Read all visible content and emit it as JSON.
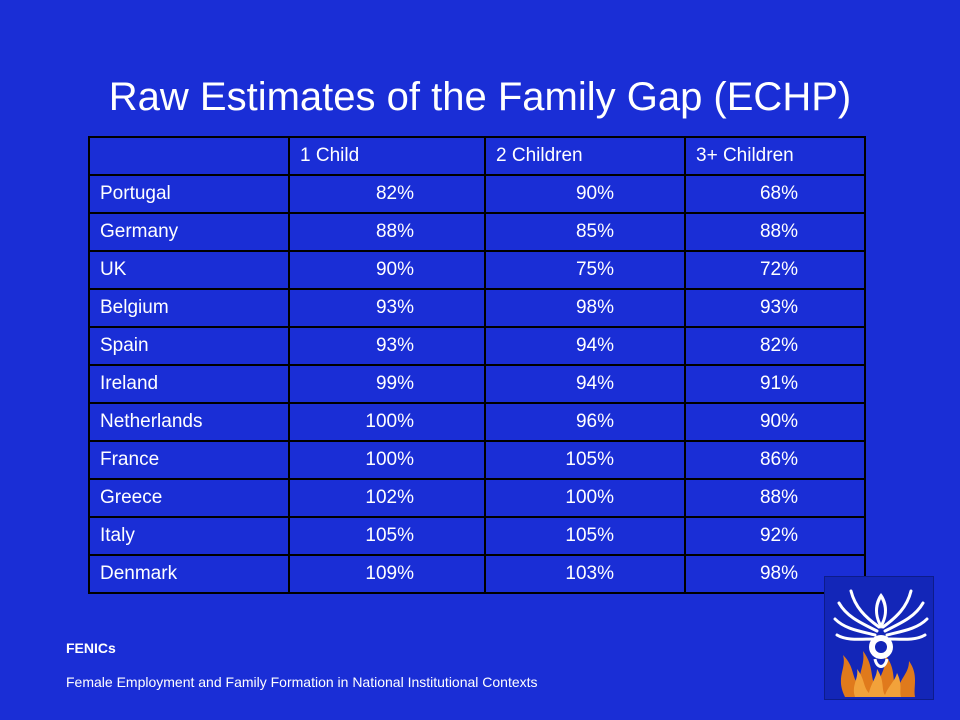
{
  "slide": {
    "title": "Raw Estimates of the Family Gap (ECHP)",
    "footer_org": "FENICs",
    "footer_desc": "Female Employment and Family Formation in National Institutional Contexts",
    "logo_icon": "phoenix-logo-icon"
  },
  "table": {
    "headers": [
      "",
      "1 Child",
      "2 Children",
      "3+ Children"
    ],
    "rows": [
      {
        "country": "Portugal",
        "c1": "82%",
        "c2": "90%",
        "c3": "68%"
      },
      {
        "country": "Germany",
        "c1": "88%",
        "c2": "85%",
        "c3": "88%"
      },
      {
        "country": "UK",
        "c1": "90%",
        "c2": "75%",
        "c3": "72%"
      },
      {
        "country": "Belgium",
        "c1": "93%",
        "c2": "98%",
        "c3": "93%"
      },
      {
        "country": "Spain",
        "c1": "93%",
        "c2": "94%",
        "c3": "82%"
      },
      {
        "country": "Ireland",
        "c1": "99%",
        "c2": "94%",
        "c3": "91%"
      },
      {
        "country": "Netherlands",
        "c1": "100%",
        "c2": "96%",
        "c3": "90%"
      },
      {
        "country": "France",
        "c1": "100%",
        "c2": "105%",
        "c3": "86%"
      },
      {
        "country": "Greece",
        "c1": "102%",
        "c2": "100%",
        "c3": "88%"
      },
      {
        "country": "Italy",
        "c1": "105%",
        "c2": "105%",
        "c3": "92%"
      },
      {
        "country": "Denmark",
        "c1": "109%",
        "c2": "103%",
        "c3": "98%"
      }
    ]
  },
  "colors": {
    "background": "#1a2ed6",
    "text": "#ffffff",
    "grid": "#000000"
  }
}
